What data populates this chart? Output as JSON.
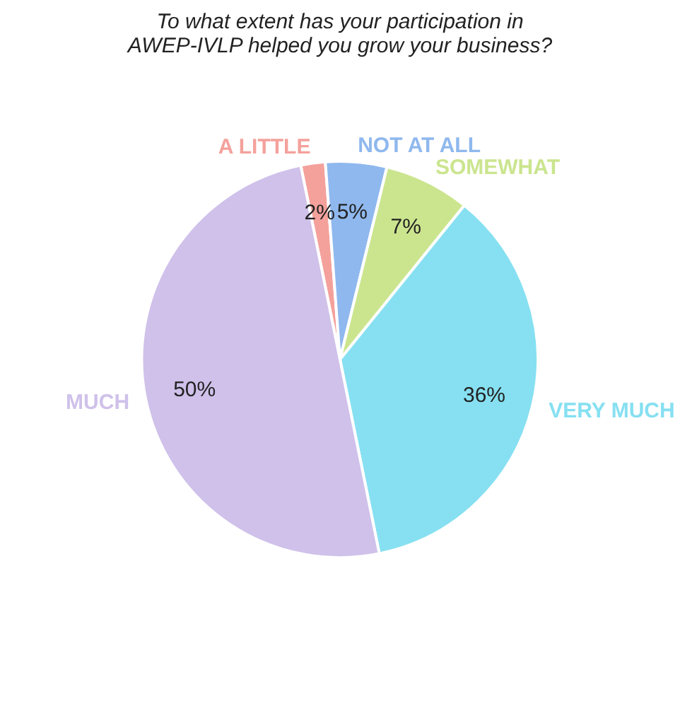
{
  "chart_data": {
    "type": "pie",
    "title": "To what extent has your participation in AWEP-IVLP helped you grow your business?",
    "categories": [
      "A LITTLE",
      "NOT AT ALL",
      "SOMEWHAT",
      "VERY MUCH",
      "MUCH"
    ],
    "values": [
      2,
      5,
      7,
      36,
      50
    ],
    "colors": [
      "#f4a19c",
      "#8fb8ee",
      "#cbe58f",
      "#86e0f1",
      "#cfc1ea"
    ],
    "value_labels": [
      "2%",
      "5%",
      "7%",
      "36%",
      "50%"
    ],
    "legend": false
  }
}
